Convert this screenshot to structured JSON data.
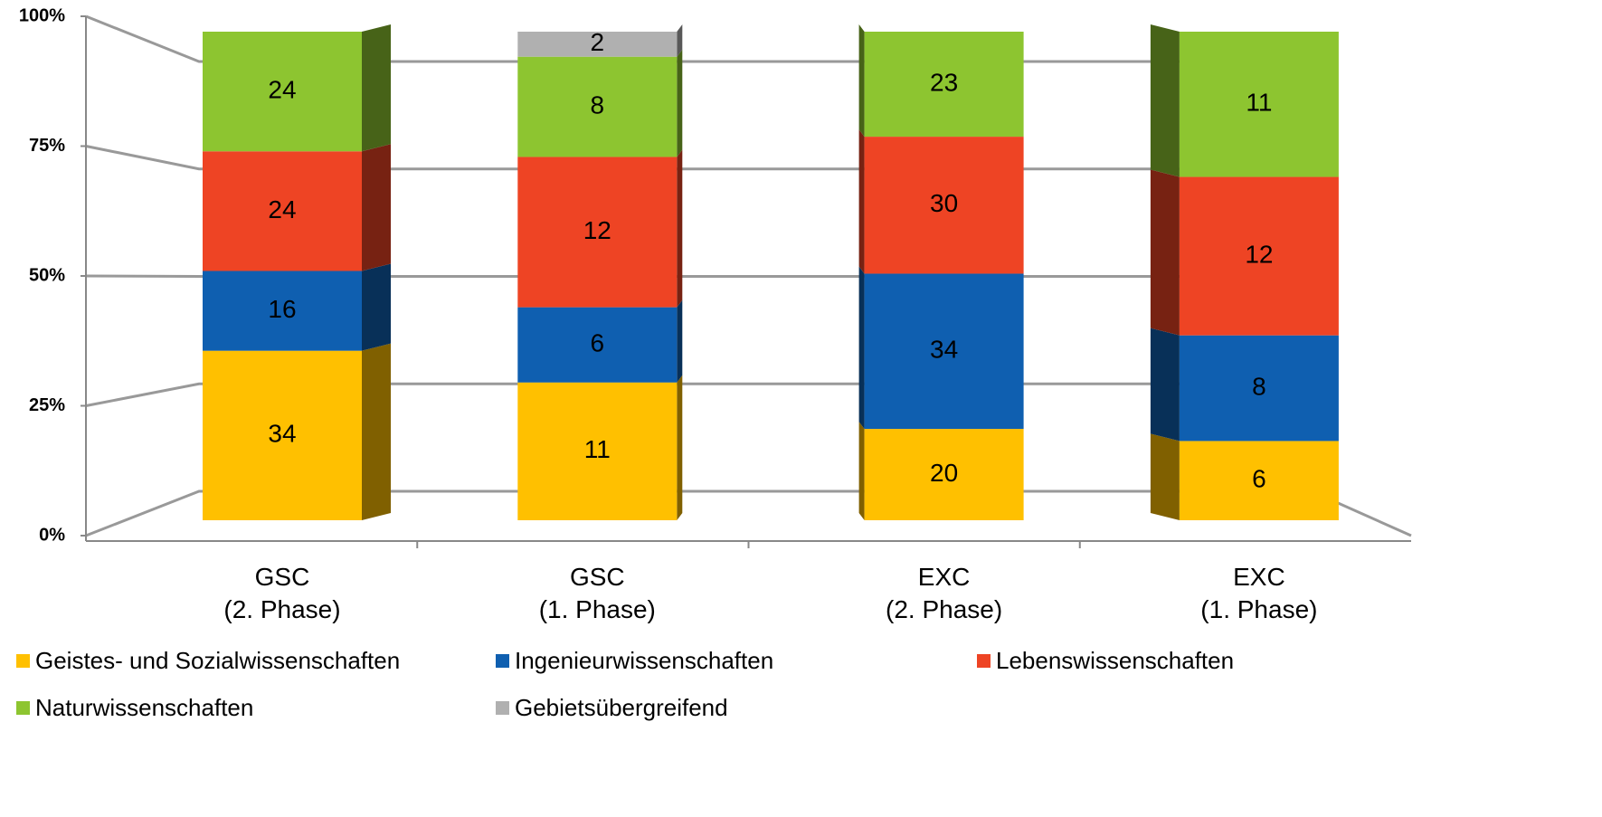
{
  "chart_data": {
    "type": "bar",
    "stacking": "percent",
    "categories": [
      "GSC\n(2. Phase)",
      "GSC\n(1. Phase)",
      "EXC\n(2. Phase)",
      "EXC\n(1. Phase)"
    ],
    "series": [
      {
        "name": "Geistes- und Sozialwissenschaften",
        "color": "#FFC000",
        "values": [
          34,
          11,
          20,
          6
        ]
      },
      {
        "name": "Ingenieurwissenschaften",
        "color": "#0F5FB0",
        "values": [
          16,
          6,
          34,
          8
        ]
      },
      {
        "name": "Lebenswissenschaften",
        "color": "#EE4424",
        "values": [
          24,
          12,
          30,
          12
        ]
      },
      {
        "name": "Naturwissenschaften",
        "color": "#8DC530",
        "values": [
          24,
          8,
          23,
          11
        ]
      },
      {
        "name": "Gebietsübergreifend",
        "color": "#B0B0B0",
        "values": [
          null,
          2,
          null,
          null
        ]
      }
    ],
    "ylim": [
      0,
      100
    ],
    "yticks": [
      {
        "value": 0,
        "label": "0%"
      },
      {
        "value": 25,
        "label": "25%"
      },
      {
        "value": 50,
        "label": "50%"
      },
      {
        "value": 75,
        "label": "75%"
      },
      {
        "value": 100,
        "label": "100%"
      }
    ],
    "grid": true,
    "legend": "bottom"
  }
}
